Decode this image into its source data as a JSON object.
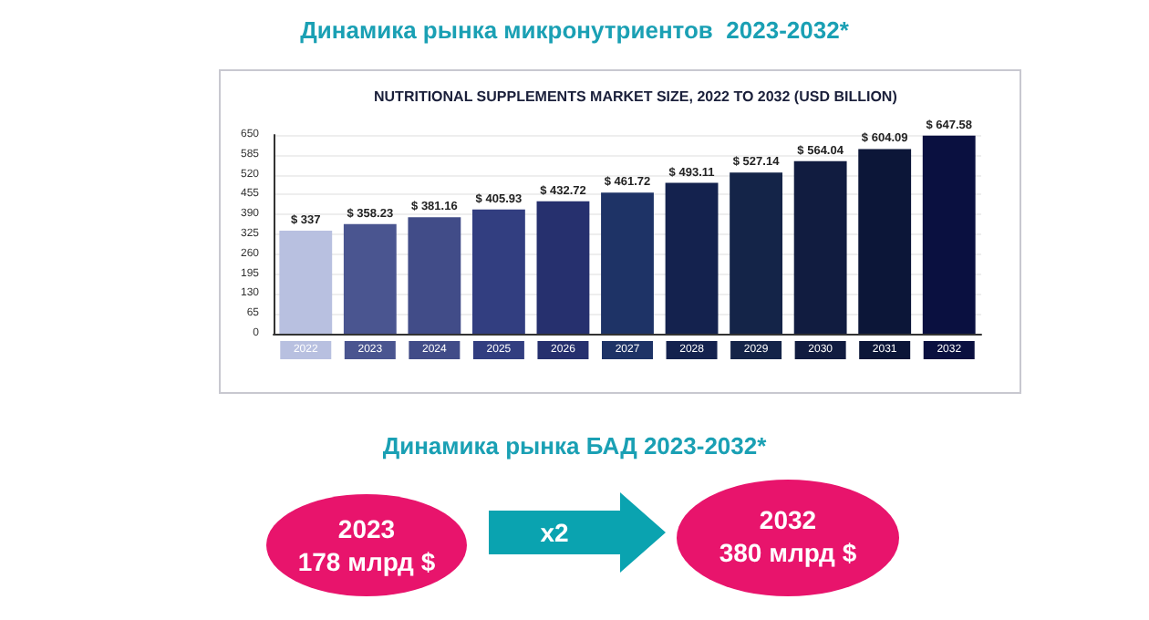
{
  "chart_data": {
    "type": "bar",
    "title": "Динамика рынка микронутриентов  2023-2032*",
    "subtitle": "NUTRITIONAL SUPPLEMENTS MARKET SIZE, 2022 TO 2032 (USD BILLION)",
    "categories": [
      "2022",
      "2023",
      "2024",
      "2025",
      "2026",
      "2027",
      "2028",
      "2029",
      "2030",
      "2031",
      "2032"
    ],
    "values": [
      337,
      358.23,
      381.16,
      405.93,
      432.72,
      461.72,
      493.11,
      527.14,
      564.04,
      604.09,
      647.58
    ],
    "value_labels": [
      "$ 337",
      "$ 358.23",
      "$ 381.16",
      "$ 405.93",
      "$ 432.72",
      "$ 461.72",
      "$ 493.11",
      "$ 527.14",
      "$ 564.04",
      "$ 604.09",
      "$ 647.58"
    ],
    "colors": [
      "#b8c0e0",
      "#4a5590",
      "#414c88",
      "#323e80",
      "#26306e",
      "#1e3366",
      "#14224e",
      "#142448",
      "#111c40",
      "#0c1638",
      "#0a1040"
    ],
    "ylim": [
      0,
      650
    ],
    "yticks": [
      0,
      65,
      130,
      195,
      260,
      325,
      390,
      455,
      520,
      585,
      650
    ],
    "grid": "y",
    "annotations": [
      "Динамика рынка БАД 2023-2032*",
      "2023",
      "178 млрд $",
      "x2",
      "2032",
      "380 млрд $"
    ]
  }
}
